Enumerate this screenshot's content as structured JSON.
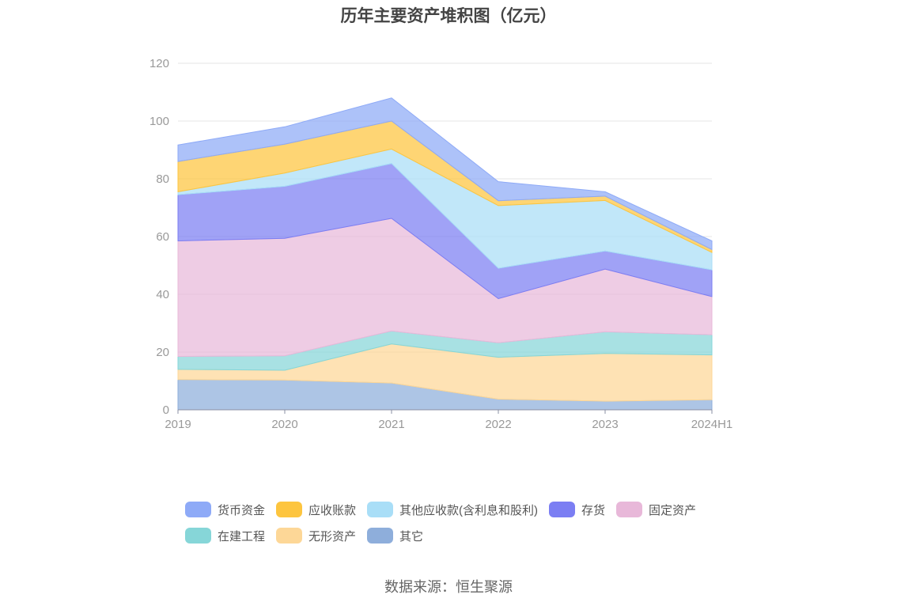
{
  "chart_data": {
    "type": "area",
    "stacked": true,
    "title": "历年主要资产堆积图（亿元）",
    "x": [
      "2019",
      "2020",
      "2021",
      "2022",
      "2023",
      "2024H1"
    ],
    "ylim": [
      0,
      120
    ],
    "yticks": [
      0,
      20,
      40,
      60,
      80,
      100,
      120
    ],
    "grid": true,
    "legend_position": "bottom",
    "series": [
      {
        "name": "其它",
        "color": "#8eaedb",
        "values": [
          10.5,
          10.3,
          9.3,
          3.7,
          3.0,
          3.5
        ]
      },
      {
        "name": "无形资产",
        "color": "#fdd797",
        "values": [
          3.5,
          3.4,
          13.5,
          14.5,
          16.5,
          15.5
        ]
      },
      {
        "name": "在建工程",
        "color": "#86d6d8",
        "values": [
          4.5,
          5.0,
          4.5,
          5.0,
          7.5,
          7.0
        ]
      },
      {
        "name": "固定资产",
        "color": "#e8b8d9",
        "values": [
          40.0,
          40.7,
          39.0,
          15.3,
          21.7,
          13.2
        ]
      },
      {
        "name": "存货",
        "color": "#7b7ef3",
        "values": [
          16.0,
          18.0,
          19.0,
          10.5,
          6.3,
          9.3
        ]
      },
      {
        "name": "其他应收款(含利息和股利)",
        "color": "#a9def7",
        "values": [
          1.0,
          4.6,
          5.0,
          21.7,
          17.5,
          6.0
        ]
      },
      {
        "name": "应收账款",
        "color": "#fdc53f",
        "values": [
          10.5,
          10.0,
          9.7,
          1.7,
          1.5,
          1.0
        ]
      },
      {
        "name": "货币资金",
        "color": "#8eaaf7",
        "values": [
          5.7,
          6.0,
          8.0,
          6.6,
          1.5,
          3.0
        ]
      }
    ]
  },
  "legend_order": [
    "货币资金",
    "应收账款",
    "其他应收款(含利息和股利)",
    "存货",
    "固定资产",
    "在建工程",
    "无形资产",
    "其它"
  ],
  "source": "数据来源：恒生聚源"
}
